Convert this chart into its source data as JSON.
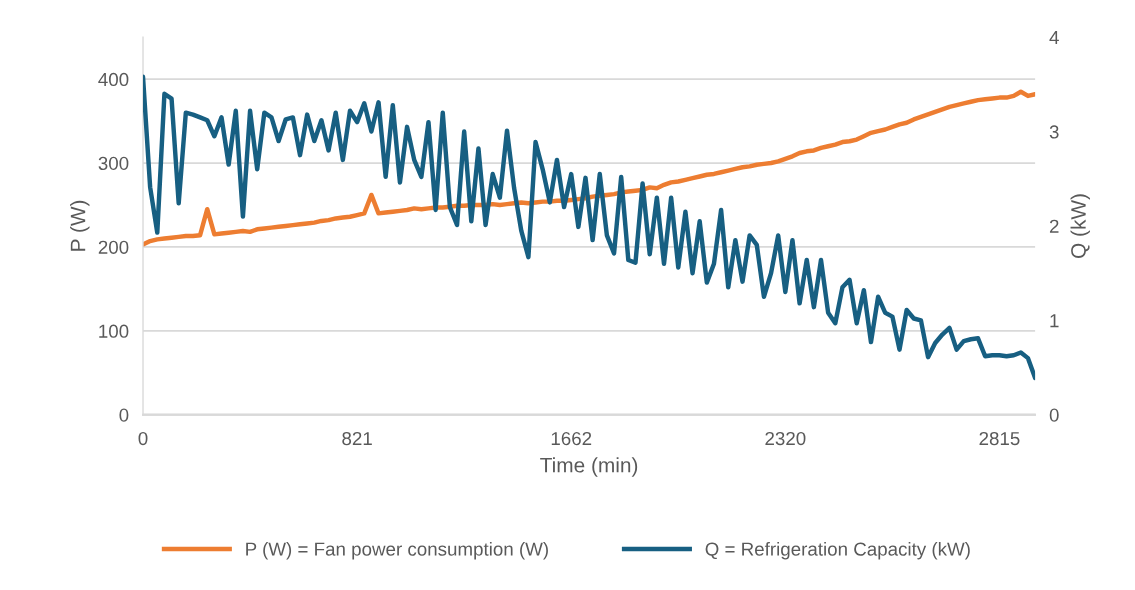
{
  "chart_data": {
    "type": "line",
    "xlabel": "Time (min)",
    "ylabel": "P (W)",
    "y2label": "Q (kW)",
    "categories": [
      "0",
      null,
      null,
      null,
      null,
      null,
      null,
      null,
      null,
      null,
      null,
      null,
      null,
      null,
      null,
      null,
      null,
      null,
      null,
      null,
      null,
      null,
      null,
      null,
      null,
      null,
      null,
      null,
      null,
      null,
      "821",
      null,
      null,
      null,
      null,
      null,
      null,
      null,
      null,
      null,
      null,
      null,
      null,
      null,
      null,
      null,
      null,
      null,
      null,
      null,
      null,
      null,
      null,
      null,
      null,
      null,
      null,
      null,
      null,
      null,
      "1662",
      null,
      null,
      null,
      null,
      null,
      null,
      null,
      null,
      null,
      null,
      null,
      null,
      null,
      null,
      null,
      null,
      null,
      null,
      null,
      null,
      null,
      null,
      null,
      null,
      null,
      null,
      null,
      null,
      null,
      "2320",
      null,
      null,
      null,
      null,
      null,
      null,
      null,
      null,
      null,
      null,
      null,
      null,
      null,
      null,
      null,
      null,
      null,
      null,
      null,
      null,
      null,
      null,
      null,
      null,
      null,
      null,
      null,
      null,
      null,
      "2815",
      null,
      null,
      null,
      null,
      null
    ],
    "series": [
      {
        "name": "P (W) = Fan power consumption (W)",
        "color": "#ed7d31",
        "values": [
          203,
          207,
          209,
          210,
          211,
          212,
          213,
          213,
          214,
          245,
          215,
          216,
          217,
          218,
          219,
          218,
          221,
          222,
          223,
          224,
          225,
          226,
          227,
          228,
          229,
          231,
          232,
          234,
          235,
          236,
          238,
          240,
          262,
          240,
          241,
          242,
          243,
          244,
          246,
          245,
          246,
          247,
          247,
          248,
          249,
          249,
          250,
          250,
          250,
          251,
          250,
          251,
          252,
          253,
          252,
          253,
          254,
          254,
          255,
          255,
          256,
          257,
          258,
          260,
          261,
          262,
          263,
          265,
          266,
          267,
          268,
          271,
          270,
          274,
          277,
          278,
          280,
          282,
          284,
          286,
          287,
          289,
          291,
          293,
          295,
          296,
          298,
          299,
          300,
          302,
          305,
          308,
          312,
          314,
          315,
          318,
          320,
          322,
          325,
          326,
          328,
          332,
          336,
          338,
          340,
          343,
          346,
          348,
          352,
          355,
          358,
          361,
          364,
          367,
          369,
          371,
          373,
          375,
          376,
          377,
          378,
          378,
          380,
          385,
          380,
          382
        ]
      },
      {
        "name": "Q = Refrigeration Capacity (kW)",
        "color": "#175f82",
        "axis": "y2",
        "values": [
          3.58,
          2.41,
          1.93,
          3.4,
          3.35,
          2.24,
          3.2,
          3.18,
          3.15,
          3.12,
          2.95,
          3.15,
          2.65,
          3.22,
          2.1,
          3.22,
          2.6,
          3.2,
          3.15,
          2.9,
          3.13,
          3.15,
          2.75,
          3.18,
          2.9,
          3.12,
          2.8,
          3.2,
          2.7,
          3.22,
          3.1,
          3.3,
          3.0,
          3.31,
          2.52,
          3.28,
          2.46,
          3.05,
          2.7,
          2.52,
          3.1,
          2.17,
          3.2,
          2.2,
          2.01,
          3.0,
          2.05,
          2.82,
          2.01,
          2.55,
          2.3,
          3.01,
          2.4,
          1.95,
          1.67,
          2.89,
          2.6,
          2.25,
          2.7,
          2.2,
          2.55,
          1.99,
          2.51,
          1.85,
          2.55,
          1.9,
          1.71,
          2.52,
          1.64,
          1.61,
          2.45,
          1.7,
          2.3,
          1.6,
          2.3,
          1.56,
          2.15,
          1.5,
          2.05,
          1.4,
          1.6,
          2.17,
          1.35,
          1.85,
          1.41,
          1.9,
          1.8,
          1.25,
          1.5,
          1.9,
          1.3,
          1.85,
          1.18,
          1.64,
          1.14,
          1.64,
          1.08,
          0.97,
          1.35,
          1.43,
          0.97,
          1.32,
          0.77,
          1.25,
          1.08,
          1.04,
          0.69,
          1.11,
          1.02,
          1.0,
          0.61,
          0.76,
          0.85,
          0.92,
          0.69,
          0.78,
          0.8,
          0.81,
          0.62,
          0.63,
          0.63,
          0.62,
          0.63,
          0.66,
          0.6,
          0.39
        ]
      }
    ],
    "ylim": [
      0,
      450
    ],
    "yticks": [
      0,
      100,
      200,
      300,
      400
    ],
    "y2lim": [
      0,
      4
    ],
    "y2ticks": [
      0,
      1,
      2,
      3,
      4
    ],
    "grid": "y",
    "legend": "bottom",
    "marker": "none",
    "line_style": "solid"
  }
}
